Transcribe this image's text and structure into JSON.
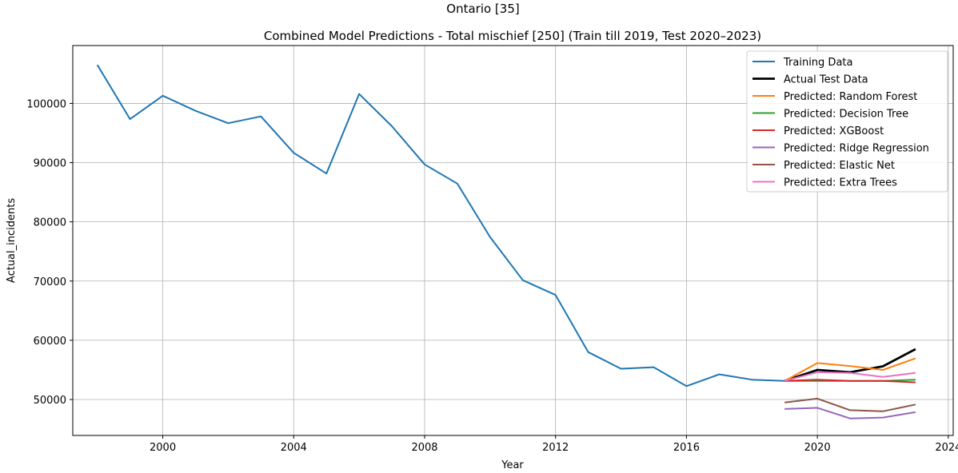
{
  "chart_data": {
    "type": "line",
    "suptitle": "Ontario [35]",
    "title": "Combined Model Predictions - Total mischief [250] (Train till 2019, Test 2020–2023)",
    "xlabel": "Year",
    "ylabel": "Actual_incidents",
    "xlim": [
      1997.25,
      2024.15
    ],
    "ylim": [
      43930,
      109770
    ],
    "xticks": [
      2000,
      2004,
      2008,
      2012,
      2016,
      2020,
      2024
    ],
    "yticks": [
      50000,
      60000,
      70000,
      80000,
      90000,
      100000
    ],
    "grid": true,
    "legend_position": "upper right",
    "series": [
      {
        "name": "Training Data",
        "color": "#1f77b4",
        "width": 2,
        "x": [
          1998,
          1999,
          2000,
          2001,
          2002,
          2003,
          2004,
          2005,
          2006,
          2007,
          2008,
          2009,
          2010,
          2011,
          2012,
          2013,
          2014,
          2015,
          2016,
          2017,
          2018,
          2019
        ],
        "y": [
          106500,
          97350,
          101300,
          98750,
          96650,
          97800,
          91650,
          88150,
          101600,
          96150,
          89700,
          86450,
          77450,
          70150,
          67650,
          58000,
          55200,
          55450,
          52250,
          54250,
          53350,
          53150
        ]
      },
      {
        "name": "Actual Test Data",
        "color": "#000000",
        "width": 2.8,
        "x": [
          2019,
          2020,
          2021,
          2022,
          2023
        ],
        "y": [
          53150,
          55000,
          54600,
          55600,
          58500
        ]
      },
      {
        "name": "Predicted: Random Forest",
        "color": "#ff7f0e",
        "width": 2,
        "x": [
          2019,
          2020,
          2021,
          2022,
          2023
        ],
        "y": [
          53150,
          56150,
          55650,
          55000,
          56950
        ]
      },
      {
        "name": "Predicted: Decision Tree",
        "color": "#2ca02c",
        "width": 2,
        "x": [
          2019,
          2020,
          2021,
          2022,
          2023
        ],
        "y": [
          53150,
          53150,
          53150,
          53150,
          53350
        ]
      },
      {
        "name": "Predicted: XGBoost",
        "color": "#d62728",
        "width": 2,
        "x": [
          2019,
          2020,
          2021,
          2022,
          2023
        ],
        "y": [
          53150,
          53350,
          53150,
          53150,
          52900
        ]
      },
      {
        "name": "Predicted: Ridge Regression",
        "color": "#9467bd",
        "width": 2,
        "x": [
          2019,
          2020,
          2021,
          2022,
          2023
        ],
        "y": [
          48400,
          48600,
          46800,
          46950,
          47850
        ]
      },
      {
        "name": "Predicted: Elastic Net",
        "color": "#8c564b",
        "width": 2,
        "x": [
          2019,
          2020,
          2021,
          2022,
          2023
        ],
        "y": [
          49500,
          50150,
          48200,
          48000,
          49150
        ]
      },
      {
        "name": "Predicted: Extra Trees",
        "color": "#e377c2",
        "width": 2,
        "x": [
          2019,
          2020,
          2021,
          2022,
          2023
        ],
        "y": [
          53150,
          54600,
          54500,
          53800,
          54500
        ]
      }
    ]
  }
}
